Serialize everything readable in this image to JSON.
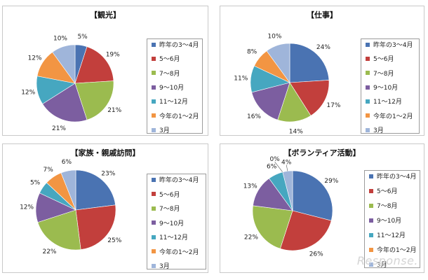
{
  "colors": [
    "#4a73b2",
    "#c23f3c",
    "#9bbb4f",
    "#7c5ea0",
    "#46a7c0",
    "#f29543",
    "#9fb5da"
  ],
  "chart_data": [
    {
      "type": "pie",
      "title": "【観光】",
      "categories": [
        "昨年の3～4月",
        "5～6月",
        "7～8月",
        "9～10月",
        "11～12月",
        "今年の1～2月",
        "3月"
      ],
      "values": [
        5,
        19,
        21,
        21,
        12,
        12,
        10
      ],
      "labels": [
        "5%",
        "19%",
        "21%",
        "21%",
        "12%",
        "12%",
        "10%"
      ]
    },
    {
      "type": "pie",
      "title": "【仕事】",
      "categories": [
        "昨年の3～4月",
        "5～6月",
        "7～8月",
        "9～10月",
        "11～12月",
        "今年の1～2月",
        "3月"
      ],
      "values": [
        24,
        17,
        14,
        16,
        11,
        8,
        10
      ],
      "labels": [
        "24%",
        "17%",
        "14%",
        "16%",
        "11%",
        "8%",
        "10%"
      ]
    },
    {
      "type": "pie",
      "title": "【家族・親戚訪問】",
      "categories": [
        "昨年の3～4月",
        "5～6月",
        "7～8月",
        "9～10月",
        "11～12月",
        "今年の1～2月",
        "3月"
      ],
      "values": [
        23,
        25,
        22,
        12,
        5,
        7,
        6
      ],
      "labels": [
        "23%",
        "25%",
        "22%",
        "12%",
        "5%",
        "7%",
        "6%"
      ]
    },
    {
      "type": "pie",
      "title": "【ボランティア活動】",
      "categories": [
        "昨年の3～4月",
        "5～6月",
        "7～8月",
        "9～10月",
        "11～12月",
        "今年の1～2月",
        "3月"
      ],
      "values": [
        29,
        26,
        22,
        13,
        6,
        0,
        4
      ],
      "labels": [
        "29%",
        "26%",
        "22%",
        "13%",
        "6%",
        "0%",
        "4%"
      ]
    }
  ],
  "watermark": "Response."
}
